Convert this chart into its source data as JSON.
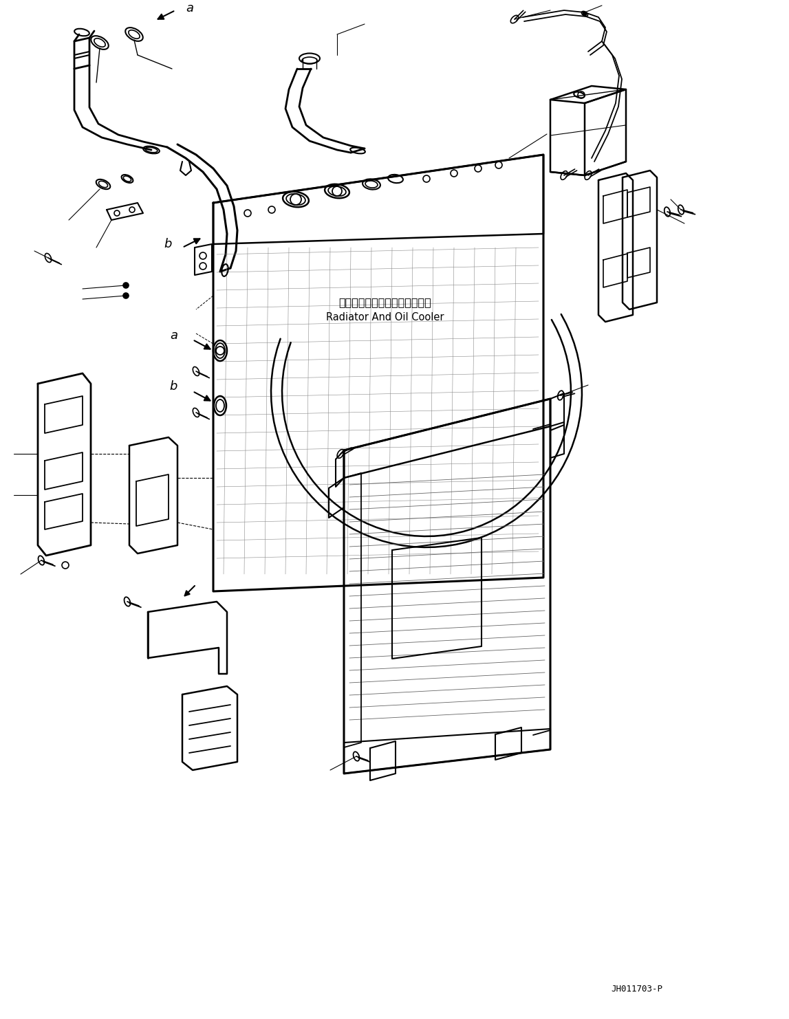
{
  "bg_color": "#ffffff",
  "lc": "#000000",
  "fig_width": 11.47,
  "fig_height": 14.82,
  "dpi": 100,
  "text_jp": "ラジエータおよびオイルクーラ",
  "text_en": "Radiator And Oil Cooler",
  "watermark": "JH011703-P"
}
